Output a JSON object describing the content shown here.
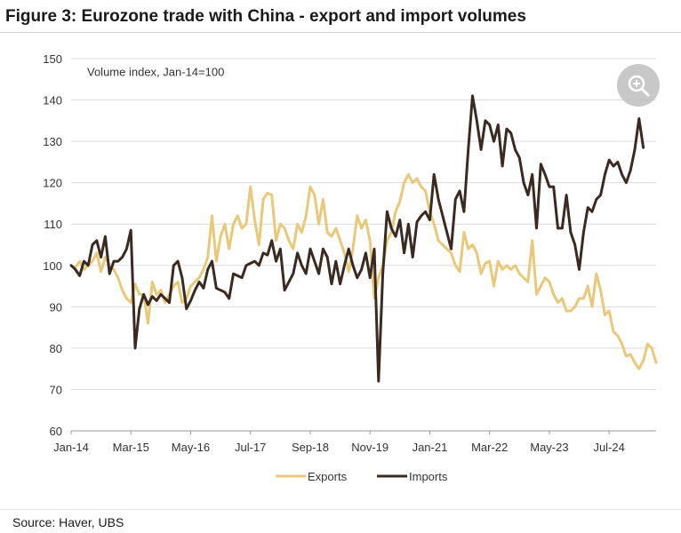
{
  "figure_title": "Figure 3: Eurozone trade with China - export and import volumes",
  "source": "Source: Haver, UBS",
  "zoom_icon": "zoom-in-icon",
  "chart_data": {
    "type": "line",
    "annotation": "Volume index, Jan-14=100",
    "ylim": [
      60,
      150
    ],
    "yticks": [
      60,
      70,
      80,
      90,
      100,
      110,
      120,
      130,
      140,
      150
    ],
    "xlim": [
      0,
      137
    ],
    "xtick_labels": [
      "Jan-14",
      "Mar-15",
      "May-16",
      "Jul-17",
      "Sep-18",
      "Nov-19",
      "Jan-21",
      "Mar-22",
      "May-23",
      "Jul-24"
    ],
    "xtick_positions": [
      0,
      14,
      28,
      42,
      56,
      70,
      84,
      98,
      112,
      126
    ],
    "grid": "horizontal",
    "legend_position": "bottom",
    "series": [
      {
        "name": "Exports",
        "color": "#e8c97a",
        "values": [
          100,
          99.5,
          101,
          99,
          100,
          101,
          103,
          98.5,
          102,
          100,
          99,
          97,
          94,
          92,
          91,
          95.5,
          93,
          93,
          86,
          96,
          93,
          94,
          91,
          93,
          95,
          96,
          91,
          92,
          95,
          96,
          97,
          99,
          102,
          112,
          101,
          107,
          110,
          104,
          110,
          112,
          109,
          110,
          119,
          111,
          105,
          116,
          117.5,
          117,
          106,
          110,
          109,
          106,
          104,
          110,
          108,
          112,
          119,
          117,
          110,
          116,
          108,
          107,
          109,
          106,
          103,
          98.5,
          104,
          112,
          109,
          111,
          106,
          92,
          97,
          100,
          106,
          108,
          113,
          115.5,
          120,
          122,
          120,
          121,
          119,
          118,
          113,
          110,
          106,
          105,
          104,
          103,
          100,
          98.5,
          108,
          104,
          105,
          103,
          98,
          100.5,
          101,
          95,
          101,
          99,
          100,
          99,
          100,
          98,
          97,
          96,
          106,
          93,
          95,
          97,
          96,
          93,
          91,
          92,
          89,
          89,
          90,
          92,
          92,
          95,
          90,
          98,
          94,
          88,
          89,
          84,
          83,
          81,
          78,
          78.5,
          76.5,
          75,
          77,
          81,
          80,
          76.5
        ]
      },
      {
        "name": "Imports",
        "color": "#3b2a22",
        "values": [
          100,
          99,
          97.5,
          101,
          100,
          105,
          106,
          102,
          107,
          98,
          101,
          101,
          102,
          104,
          108.5,
          80,
          89.5,
          93,
          90.5,
          92.5,
          91.5,
          93,
          92,
          91,
          100,
          101,
          97,
          89.5,
          91.5,
          94,
          96,
          94.5,
          99,
          101,
          94.5,
          94,
          93.5,
          92,
          98,
          97.5,
          97,
          100,
          100.5,
          101,
          100,
          103,
          102.5,
          106,
          101,
          104,
          94,
          96,
          98,
          103,
          100,
          98,
          104,
          101,
          98,
          104,
          102,
          95.5,
          101,
          95.5,
          100,
          104,
          100,
          97,
          99,
          103,
          97,
          104,
          72,
          98,
          113,
          109,
          107,
          111,
          103,
          110,
          102,
          110.5,
          112,
          113,
          111,
          122,
          116,
          112,
          108,
          104,
          116,
          118,
          113,
          128,
          141,
          135,
          128,
          135,
          134,
          130,
          134,
          124,
          133,
          132,
          128,
          126,
          120,
          117,
          122,
          109,
          124.5,
          122,
          119,
          119,
          109,
          109,
          117,
          108,
          105,
          99,
          108,
          114,
          113,
          116,
          117,
          122,
          125.5,
          124,
          125,
          122,
          120,
          123,
          128,
          135.5,
          128.5
        ]
      }
    ]
  }
}
